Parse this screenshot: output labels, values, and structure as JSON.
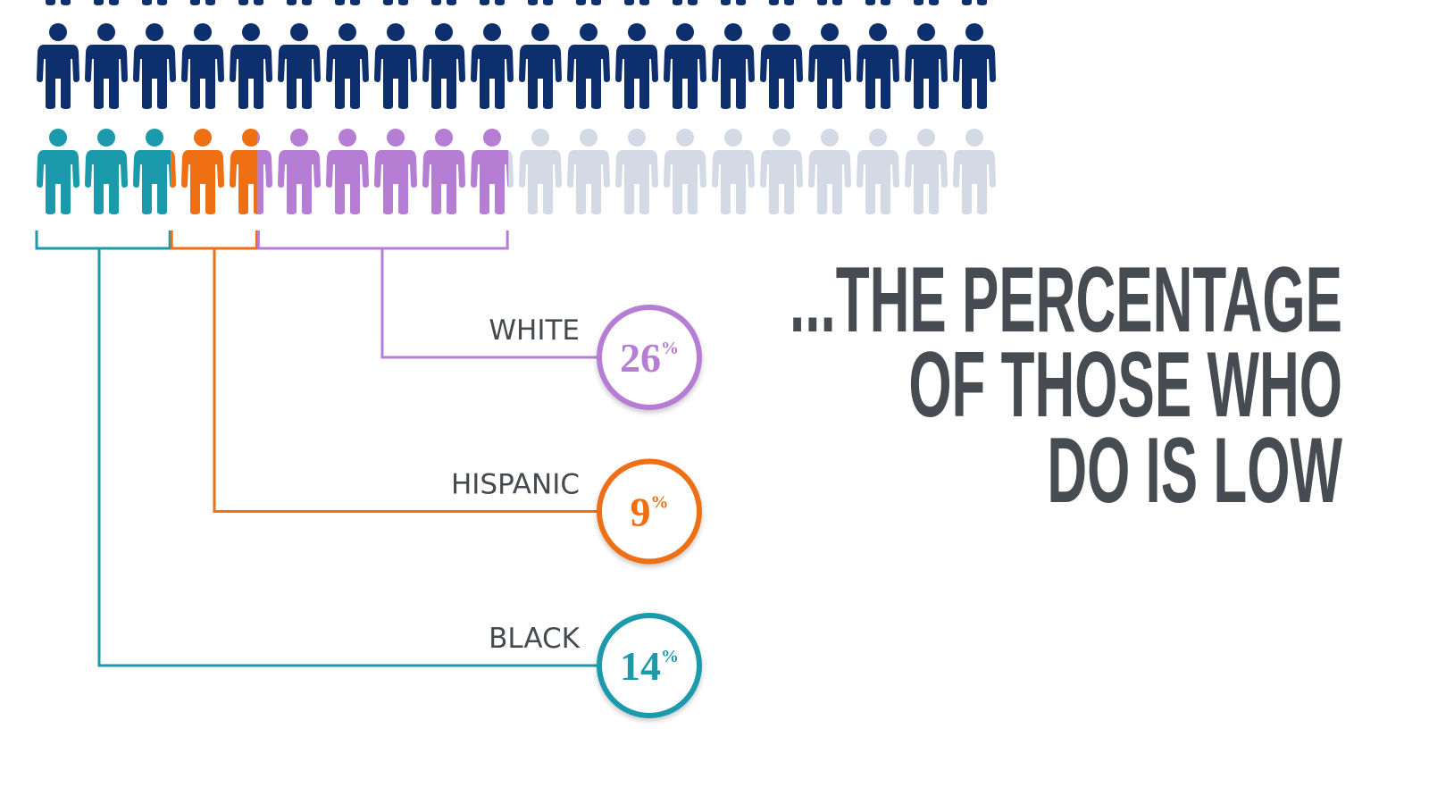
{
  "chart_data": {
    "type": "pictogram",
    "categories": [
      "BLACK",
      "HISPANIC",
      "WHITE"
    ],
    "values": [
      14,
      9,
      26
    ],
    "value_labels": [
      "14%",
      "9%",
      "26%"
    ],
    "colors": [
      "#1b9aab",
      "#ee7013",
      "#b67dd5"
    ],
    "total_color": "#0e2f6d",
    "empty_color": "#d3d9e5",
    "annotation": [
      "...THE PERCENTAGE",
      "OF THOSE WHO",
      "DO IS LOW"
    ]
  }
}
